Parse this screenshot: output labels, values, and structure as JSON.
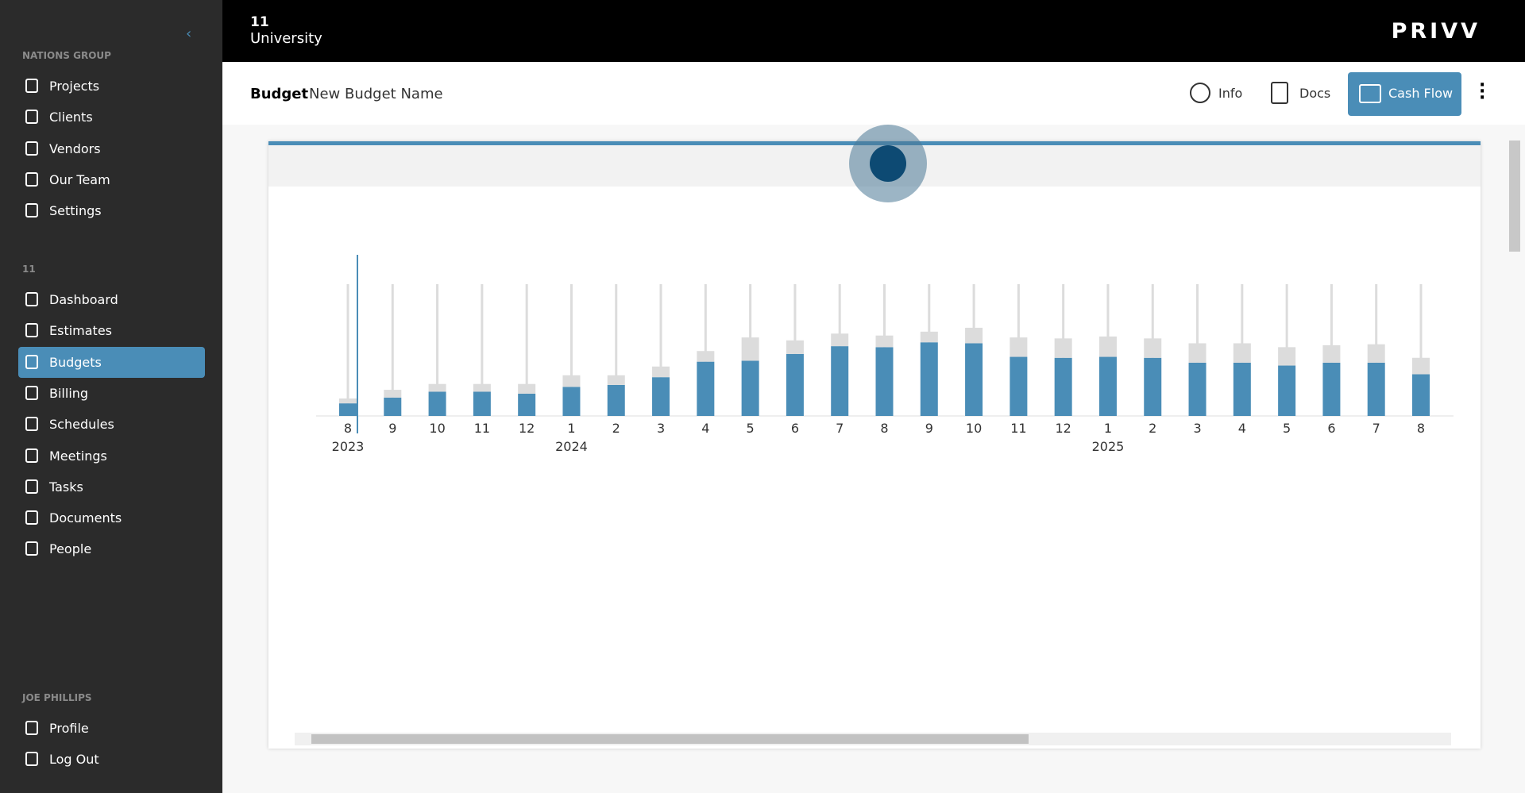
{
  "header": {
    "project_number": "11",
    "project_name": "University",
    "brand": "PRIVV"
  },
  "sidebar": {
    "group": "NATIONS GROUP",
    "items": [
      "Projects",
      "Clients",
      "Vendors",
      "Our Team",
      "Settings"
    ],
    "project": "11",
    "project_items": [
      "Dashboard",
      "Estimates",
      "Budgets",
      "Billing",
      "Schedules",
      "Meetings",
      "Tasks",
      "Documents",
      "People"
    ],
    "active_index": 2,
    "user": "JOE PHILLIPS",
    "user_items": [
      "Profile",
      "Log Out"
    ]
  },
  "toolbar": {
    "label": "Budget",
    "name": "New Budget Name",
    "buttons": [
      "Info",
      "Docs",
      "Cash Flow"
    ]
  },
  "chart_data": {
    "type": "bar",
    "stacked": true,
    "categories": [
      "8",
      "9",
      "10",
      "11",
      "12",
      "1",
      "2",
      "3",
      "4",
      "5",
      "6",
      "7",
      "8",
      "9",
      "10",
      "11",
      "12",
      "1",
      "2",
      "3",
      "4",
      "5",
      "6",
      "7",
      "8"
    ],
    "year_labels": [
      "2023",
      null,
      null,
      null,
      null,
      "2024",
      null,
      null,
      null,
      null,
      null,
      null,
      null,
      null,
      null,
      null,
      null,
      "2025",
      null,
      null,
      null,
      null,
      null,
      null,
      null
    ],
    "series": [
      {
        "color": "#4a8db7",
        "values": [
          13,
          19,
          25,
          25,
          23,
          30,
          32,
          40,
          56,
          57,
          64,
          72,
          71,
          76,
          75,
          61,
          60,
          61,
          60,
          55,
          55,
          52,
          55,
          55,
          43
        ]
      },
      {
        "color": "#dcdcdc",
        "values": [
          5,
          8,
          8,
          8,
          10,
          12,
          10,
          11,
          11,
          24,
          14,
          13,
          12,
          11,
          16,
          20,
          20,
          21,
          20,
          20,
          20,
          19,
          18,
          19,
          17
        ]
      }
    ],
    "ylim": [
      0,
      136
    ]
  }
}
